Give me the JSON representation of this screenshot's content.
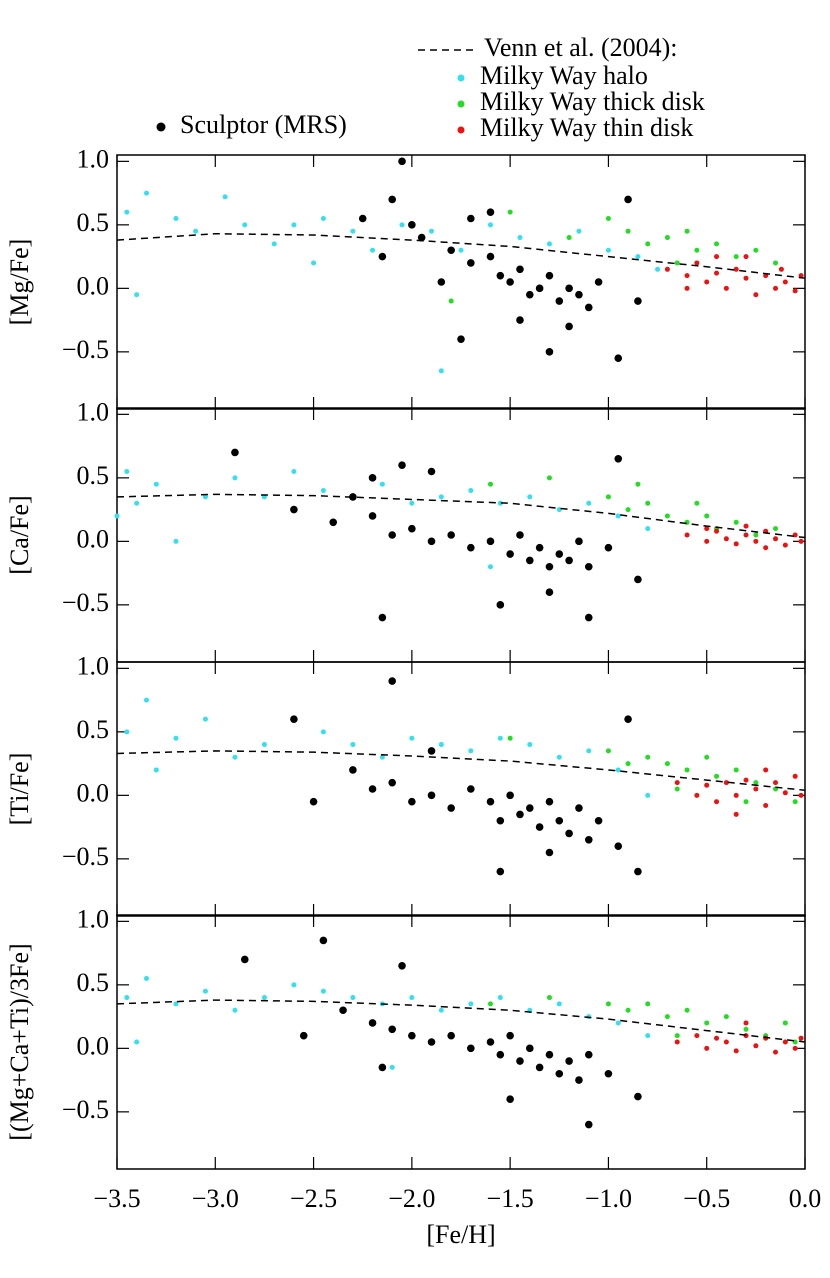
{
  "chart_data": [
    {
      "type": "scatter",
      "ylabel": "[Mg/Fe]",
      "xlim": [
        -3.5,
        0.0
      ],
      "ylim": [
        -0.95,
        1.05
      ],
      "xticks": [
        -3.5,
        -3.0,
        -2.5,
        -2.0,
        -1.5,
        -1.0,
        -0.5,
        0.0
      ],
      "yticks": [
        {
          "value": -0.5,
          "label": "−0.5"
        },
        {
          "value": 0.0,
          "label": "0.0"
        },
        {
          "value": 0.5,
          "label": "0.5"
        },
        {
          "value": 1.0,
          "label": "1.0"
        }
      ],
      "series": [
        {
          "name": "Venn et al. (2004):",
          "style": "dashed",
          "color": "#000000",
          "x": [
            -3.5,
            -3.0,
            -2.5,
            -2.0,
            -1.5,
            -1.0,
            -0.5,
            0.0
          ],
          "values": [
            0.38,
            0.43,
            0.42,
            0.38,
            0.33,
            0.25,
            0.17,
            0.08
          ]
        },
        {
          "name": "Milky Way halo",
          "color": "#33e0f0",
          "x": [
            -3.45,
            -3.35,
            -3.2,
            -3.1,
            -2.95,
            -2.85,
            -2.7,
            -2.6,
            -2.45,
            -2.3,
            -2.2,
            -2.05,
            -1.9,
            -1.75,
            -1.6,
            -1.45,
            -1.3,
            -1.15,
            -1.0,
            -0.85,
            -3.4,
            -2.5,
            -1.85,
            -0.75
          ],
          "values": [
            0.6,
            0.75,
            0.55,
            0.45,
            0.72,
            0.5,
            0.35,
            0.5,
            0.55,
            0.45,
            0.3,
            0.5,
            0.45,
            0.3,
            0.5,
            0.4,
            0.35,
            0.45,
            0.3,
            0.25,
            -0.05,
            0.2,
            -0.65,
            0.15
          ]
        },
        {
          "name": "Milky Way thick disk",
          "color": "#22dd22",
          "x": [
            -1.7,
            -1.5,
            -1.2,
            -1.0,
            -0.9,
            -0.8,
            -0.7,
            -0.6,
            -0.55,
            -0.45,
            -0.35,
            -0.25,
            -0.15,
            -0.65,
            -1.8
          ],
          "values": [
            0.55,
            0.6,
            0.4,
            0.55,
            0.45,
            0.35,
            0.4,
            0.45,
            0.3,
            0.35,
            0.25,
            0.3,
            0.2,
            0.2,
            -0.1
          ]
        },
        {
          "name": "Milky Way thin disk",
          "color": "#ee1111",
          "x": [
            -0.7,
            -0.6,
            -0.55,
            -0.5,
            -0.45,
            -0.4,
            -0.35,
            -0.3,
            -0.25,
            -0.2,
            -0.15,
            -0.1,
            -0.05,
            -0.02,
            -0.3,
            -0.45,
            -0.6,
            -0.12
          ],
          "values": [
            0.15,
            0.1,
            0.2,
            0.05,
            0.12,
            0.0,
            0.15,
            0.08,
            -0.05,
            0.1,
            0.0,
            0.05,
            -0.02,
            0.1,
            0.25,
            0.25,
            0.0,
            0.15
          ]
        },
        {
          "name": "Sculptor (MRS)",
          "color": "#000000",
          "x": [
            -2.25,
            -2.1,
            -2.0,
            -1.95,
            -1.8,
            -1.7,
            -1.6,
            -1.55,
            -1.5,
            -1.45,
            -1.4,
            -1.35,
            -1.3,
            -1.25,
            -1.2,
            -1.15,
            -1.1,
            -1.05,
            -0.9,
            -0.85,
            -1.7,
            -1.6,
            -2.05,
            -1.85,
            -1.45,
            -1.2,
            -0.95,
            -1.75,
            -2.15,
            -1.3
          ],
          "values": [
            0.55,
            0.7,
            0.5,
            0.4,
            0.3,
            0.2,
            0.25,
            0.1,
            0.05,
            0.15,
            -0.05,
            0.0,
            0.1,
            -0.1,
            0.0,
            -0.05,
            -0.15,
            0.05,
            0.7,
            -0.1,
            0.55,
            0.6,
            1.0,
            0.05,
            -0.25,
            -0.3,
            -0.55,
            -0.4,
            0.25,
            -0.5
          ]
        }
      ]
    },
    {
      "type": "scatter",
      "ylabel": "[Ca/Fe]",
      "xlim": [
        -3.5,
        0.0
      ],
      "ylim": [
        -0.95,
        1.05
      ],
      "xticks": [
        -3.5,
        -3.0,
        -2.5,
        -2.0,
        -1.5,
        -1.0,
        -0.5,
        0.0
      ],
      "yticks": [
        {
          "value": -0.5,
          "label": "−0.5"
        },
        {
          "value": 0.0,
          "label": "0.0"
        },
        {
          "value": 0.5,
          "label": "0.5"
        },
        {
          "value": 1.0,
          "label": "1.0"
        }
      ],
      "series": [
        {
          "style": "dashed",
          "color": "#000000",
          "x": [
            -3.5,
            -3.0,
            -2.5,
            -2.0,
            -1.5,
            -1.0,
            -0.5,
            0.0
          ],
          "values": [
            0.35,
            0.37,
            0.36,
            0.33,
            0.3,
            0.22,
            0.12,
            0.03
          ]
        },
        {
          "color": "#33e0f0",
          "x": [
            -3.45,
            -3.4,
            -3.3,
            -3.2,
            -3.05,
            -2.9,
            -2.75,
            -2.6,
            -2.45,
            -2.3,
            -2.15,
            -2.0,
            -1.85,
            -1.7,
            -1.55,
            -1.4,
            -1.25,
            -1.1,
            -0.95,
            -0.8,
            -3.5,
            -1.6
          ],
          "values": [
            0.55,
            0.3,
            0.45,
            0.0,
            0.35,
            0.5,
            0.35,
            0.55,
            0.4,
            0.35,
            0.45,
            0.3,
            0.35,
            0.4,
            0.3,
            0.35,
            0.25,
            0.3,
            0.2,
            0.1,
            0.2,
            -0.2
          ]
        },
        {
          "color": "#22dd22",
          "x": [
            -1.6,
            -1.3,
            -1.0,
            -0.9,
            -0.8,
            -0.7,
            -0.6,
            -0.5,
            -0.45,
            -0.35,
            -0.25,
            -0.15,
            -0.55,
            -0.85
          ],
          "values": [
            0.45,
            0.5,
            0.35,
            0.25,
            0.3,
            0.2,
            0.15,
            0.2,
            0.1,
            0.15,
            0.05,
            0.1,
            0.3,
            0.45
          ]
        },
        {
          "color": "#ee1111",
          "x": [
            -0.6,
            -0.5,
            -0.45,
            -0.4,
            -0.35,
            -0.3,
            -0.25,
            -0.2,
            -0.15,
            -0.1,
            -0.05,
            -0.02,
            -0.3,
            -0.5,
            -0.2
          ],
          "values": [
            0.05,
            0.0,
            0.08,
            0.02,
            -0.02,
            0.05,
            0.0,
            0.08,
            0.02,
            -0.03,
            0.05,
            0.0,
            0.12,
            0.1,
            -0.05
          ]
        },
        {
          "color": "#000000",
          "x": [
            -2.6,
            -2.4,
            -2.3,
            -2.2,
            -2.1,
            -2.0,
            -1.9,
            -1.8,
            -1.7,
            -1.6,
            -1.5,
            -1.45,
            -1.4,
            -1.35,
            -1.3,
            -1.25,
            -1.2,
            -1.15,
            -1.1,
            -1.0,
            -0.85,
            -2.05,
            -1.9,
            -2.2,
            -1.55,
            -1.3,
            -1.1,
            -2.15,
            -0.95,
            -2.9
          ],
          "values": [
            0.25,
            0.15,
            0.35,
            0.2,
            0.05,
            0.1,
            0.0,
            0.05,
            -0.05,
            0.0,
            -0.1,
            0.05,
            -0.15,
            -0.05,
            -0.2,
            -0.1,
            -0.15,
            0.0,
            -0.2,
            -0.05,
            -0.3,
            0.6,
            0.55,
            0.5,
            -0.5,
            -0.4,
            -0.6,
            -0.6,
            0.65,
            0.7
          ]
        }
      ]
    },
    {
      "type": "scatter",
      "ylabel": "[Ti/Fe]",
      "xlim": [
        -3.5,
        0.0
      ],
      "ylim": [
        -0.95,
        1.05
      ],
      "xticks": [
        -3.5,
        -3.0,
        -2.5,
        -2.0,
        -1.5,
        -1.0,
        -0.5,
        0.0
      ],
      "yticks": [
        {
          "value": -0.5,
          "label": "−0.5"
        },
        {
          "value": 0.0,
          "label": "0.0"
        },
        {
          "value": 0.5,
          "label": "0.5"
        },
        {
          "value": 1.0,
          "label": "1.0"
        }
      ],
      "series": [
        {
          "style": "dashed",
          "color": "#000000",
          "x": [
            -3.5,
            -3.0,
            -2.5,
            -2.0,
            -1.5,
            -1.0,
            -0.5,
            0.0
          ],
          "values": [
            0.33,
            0.35,
            0.34,
            0.31,
            0.27,
            0.2,
            0.12,
            0.04
          ]
        },
        {
          "color": "#33e0f0",
          "x": [
            -3.45,
            -3.35,
            -3.2,
            -3.05,
            -2.9,
            -2.75,
            -2.6,
            -2.45,
            -2.3,
            -2.15,
            -2.0,
            -1.85,
            -1.7,
            -1.55,
            -1.4,
            -1.25,
            -1.1,
            -0.95,
            -0.8,
            -3.3
          ],
          "values": [
            0.5,
            0.75,
            0.45,
            0.6,
            0.3,
            0.4,
            0.6,
            0.5,
            0.4,
            0.3,
            0.45,
            0.4,
            0.35,
            0.45,
            0.4,
            0.3,
            0.35,
            0.2,
            0.0,
            0.2
          ]
        },
        {
          "color": "#22dd22",
          "x": [
            -1.5,
            -1.0,
            -0.9,
            -0.8,
            -0.7,
            -0.6,
            -0.5,
            -0.45,
            -0.35,
            -0.25,
            -0.15,
            -0.05,
            -0.65,
            -0.3
          ],
          "values": [
            0.45,
            0.35,
            0.25,
            0.3,
            0.25,
            0.2,
            0.3,
            0.15,
            0.2,
            0.1,
            0.05,
            -0.05,
            0.05,
            -0.05
          ]
        },
        {
          "color": "#ee1111",
          "x": [
            -0.65,
            -0.55,
            -0.5,
            -0.45,
            -0.4,
            -0.35,
            -0.3,
            -0.25,
            -0.2,
            -0.15,
            -0.1,
            -0.05,
            -0.02,
            -0.35,
            -0.2
          ],
          "values": [
            0.1,
            0.0,
            0.08,
            -0.05,
            0.1,
            0.0,
            0.12,
            0.05,
            -0.08,
            0.1,
            0.02,
            0.15,
            0.0,
            -0.15,
            0.2
          ]
        },
        {
          "color": "#000000",
          "x": [
            -2.5,
            -2.3,
            -2.2,
            -2.1,
            -2.0,
            -1.9,
            -1.8,
            -1.7,
            -1.6,
            -1.55,
            -1.5,
            -1.45,
            -1.4,
            -1.35,
            -1.3,
            -1.25,
            -1.2,
            -1.15,
            -1.1,
            -1.05,
            -0.95,
            -0.85,
            -1.55,
            -1.3,
            -2.6,
            -1.9,
            -0.9,
            -2.1
          ],
          "values": [
            -0.05,
            0.2,
            0.05,
            0.1,
            -0.05,
            0.0,
            -0.1,
            0.05,
            -0.05,
            -0.2,
            0.0,
            -0.15,
            -0.1,
            -0.25,
            -0.05,
            -0.2,
            -0.3,
            -0.1,
            -0.35,
            -0.2,
            -0.4,
            -0.6,
            -0.6,
            -0.45,
            0.6,
            0.35,
            0.6,
            0.9
          ]
        }
      ]
    },
    {
      "type": "scatter",
      "ylabel": "[(Mg+Ca+Ti)/3Fe]",
      "xlabel": "[Fe/H]",
      "xlim": [
        -3.5,
        0.0
      ],
      "ylim": [
        -0.95,
        1.05
      ],
      "xticks": [
        {
          "value": -3.5,
          "label": "−3.5"
        },
        {
          "value": -3.0,
          "label": "−3.0"
        },
        {
          "value": -2.5,
          "label": "−2.5"
        },
        {
          "value": -2.0,
          "label": "−2.0"
        },
        {
          "value": -1.5,
          "label": "−1.5"
        },
        {
          "value": -1.0,
          "label": "−1.0"
        },
        {
          "value": -0.5,
          "label": "−0.5"
        },
        {
          "value": 0.0,
          "label": "0.0"
        }
      ],
      "yticks": [
        {
          "value": -0.5,
          "label": "−0.5"
        },
        {
          "value": 0.0,
          "label": "0.0"
        },
        {
          "value": 0.5,
          "label": "0.5"
        },
        {
          "value": 1.0,
          "label": "1.0"
        }
      ],
      "series": [
        {
          "style": "dashed",
          "color": "#000000",
          "x": [
            -3.5,
            -3.0,
            -2.5,
            -2.0,
            -1.5,
            -1.0,
            -0.5,
            0.0
          ],
          "values": [
            0.35,
            0.38,
            0.37,
            0.34,
            0.3,
            0.23,
            0.14,
            0.05
          ]
        },
        {
          "color": "#33e0f0",
          "x": [
            -3.45,
            -3.35,
            -3.2,
            -3.05,
            -2.9,
            -2.75,
            -2.6,
            -2.45,
            -2.3,
            -2.15,
            -2.0,
            -1.85,
            -1.7,
            -1.55,
            -1.4,
            -1.25,
            -1.1,
            -0.95,
            -0.8,
            -3.4,
            -2.1
          ],
          "values": [
            0.4,
            0.55,
            0.35,
            0.45,
            0.3,
            0.4,
            0.5,
            0.45,
            0.4,
            0.35,
            0.4,
            0.3,
            0.35,
            0.4,
            0.3,
            0.35,
            0.25,
            0.2,
            0.1,
            0.05,
            -0.15
          ]
        },
        {
          "color": "#22dd22",
          "x": [
            -1.6,
            -1.3,
            -1.0,
            -0.9,
            -0.8,
            -0.7,
            -0.6,
            -0.5,
            -0.4,
            -0.3,
            -0.2,
            -0.1,
            -0.05,
            -0.65
          ],
          "values": [
            0.35,
            0.4,
            0.35,
            0.3,
            0.35,
            0.25,
            0.3,
            0.2,
            0.25,
            0.15,
            0.1,
            0.2,
            0.05,
            0.1
          ]
        },
        {
          "color": "#ee1111",
          "x": [
            -0.65,
            -0.55,
            -0.5,
            -0.45,
            -0.4,
            -0.35,
            -0.3,
            -0.25,
            -0.2,
            -0.15,
            -0.1,
            -0.05,
            -0.02,
            -0.3
          ],
          "values": [
            0.05,
            0.1,
            0.0,
            0.08,
            0.05,
            -0.02,
            0.1,
            0.02,
            0.08,
            -0.03,
            0.05,
            0.0,
            0.08,
            0.2
          ]
        },
        {
          "color": "#000000",
          "x": [
            -2.55,
            -2.35,
            -2.2,
            -2.1,
            -2.0,
            -1.9,
            -1.8,
            -1.7,
            -1.6,
            -1.55,
            -1.5,
            -1.45,
            -1.4,
            -1.35,
            -1.3,
            -1.25,
            -1.2,
            -1.15,
            -1.1,
            -1.0,
            -0.85,
            -1.5,
            -2.15,
            -2.05,
            -2.45,
            -1.1,
            -2.85
          ],
          "values": [
            0.1,
            0.3,
            0.2,
            0.15,
            0.1,
            0.05,
            0.1,
            0.0,
            0.05,
            -0.05,
            0.1,
            -0.1,
            0.0,
            -0.15,
            -0.05,
            -0.2,
            -0.1,
            -0.25,
            -0.05,
            -0.2,
            -0.38,
            -0.4,
            -0.15,
            0.65,
            0.85,
            -0.6,
            0.7
          ]
        }
      ]
    }
  ]
}
